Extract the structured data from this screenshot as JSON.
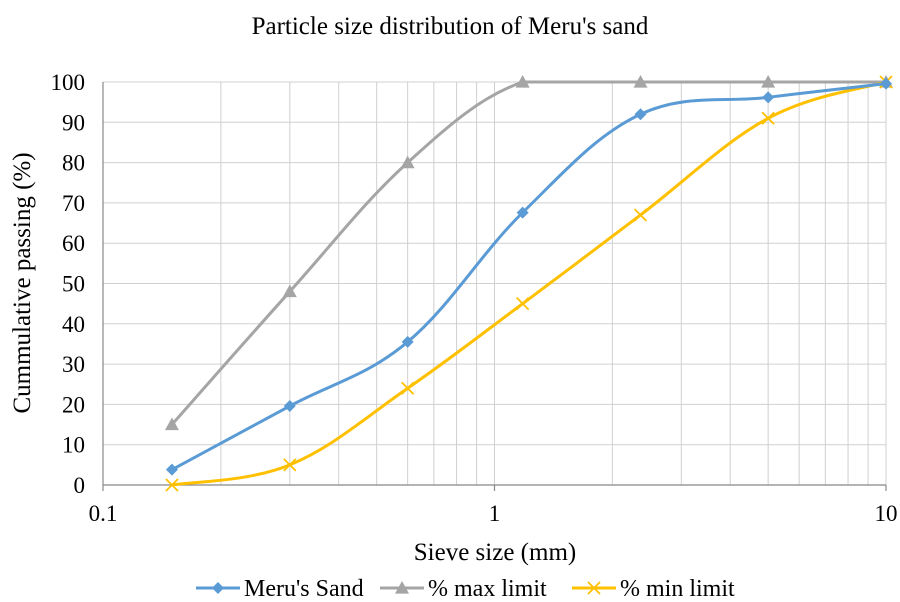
{
  "chart_data": {
    "type": "line",
    "title": "Particle size distribution of Meru's sand",
    "xlabel": "Sieve size (mm)",
    "ylabel": "Cummulative passing (%)",
    "x_scale": "log",
    "xlim": [
      0.1,
      10
    ],
    "ylim": [
      0,
      100
    ],
    "x_ticks": [
      0.1,
      1,
      10
    ],
    "x_tick_labels": [
      "0.1",
      "1",
      "10"
    ],
    "y_ticks": [
      0,
      10,
      20,
      30,
      40,
      50,
      60,
      70,
      80,
      90,
      100
    ],
    "y_tick_labels": [
      "0",
      "10",
      "20",
      "30",
      "40",
      "50",
      "60",
      "70",
      "80",
      "90",
      "100"
    ],
    "grid": true,
    "legend_position": "bottom",
    "smooth_lines": true,
    "series": [
      {
        "name": "Meru's Sand",
        "color": "#5b9bd5",
        "marker": "diamond",
        "x": [
          0.15,
          0.3,
          0.6,
          1.18,
          2.36,
          5,
          10
        ],
        "y": [
          3.8,
          19.6,
          35.5,
          67.6,
          92.0,
          96.2,
          99.6
        ]
      },
      {
        "name": "% max limit",
        "color": "#a5a5a5",
        "marker": "triangle",
        "x": [
          0.15,
          0.3,
          0.6,
          1.18,
          2.36,
          5,
          10
        ],
        "y": [
          15,
          48,
          80,
          100,
          100,
          100,
          100
        ]
      },
      {
        "name": "% min limit",
        "color": "#ffc000",
        "marker": "x",
        "x": [
          0.15,
          0.3,
          0.6,
          1.18,
          2.36,
          5,
          10
        ],
        "y": [
          0,
          5,
          24,
          45,
          67,
          91,
          100
        ]
      }
    ]
  }
}
